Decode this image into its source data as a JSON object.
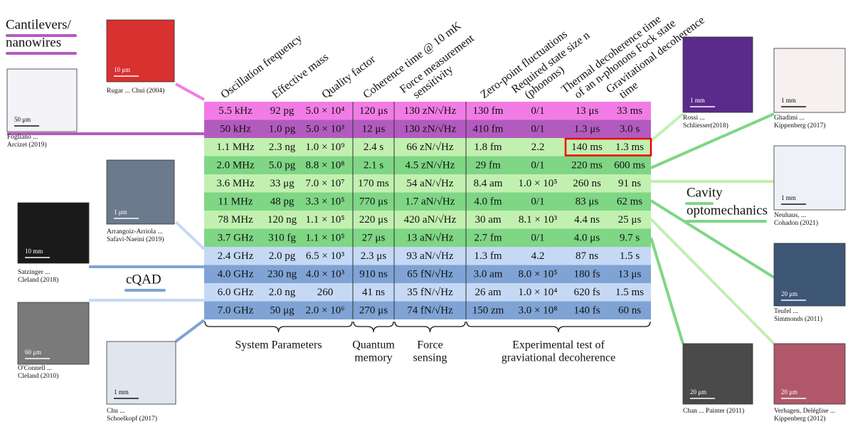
{
  "categories": [
    {
      "label": [
        "Cantilevers/",
        "nanowires"
      ]
    },
    {
      "label": [
        "cQAD"
      ]
    },
    {
      "label": [
        "Cavity",
        "optomechanics"
      ]
    }
  ],
  "table": {
    "headers": [
      [
        "Oscillation frequency"
      ],
      [
        "Effective mass"
      ],
      [
        "Quality factor"
      ],
      [
        "Coherence time @ 10 mK"
      ],
      [
        "Force measurement",
        "sensitivity"
      ],
      [
        "Zero-point fluctuations"
      ],
      [
        "Required state size n",
        "(phonons)"
      ],
      [
        "Thermal decoherence time",
        "of an n-phonons Fock state"
      ],
      [
        "Gravitational decoherence",
        "time"
      ]
    ],
    "rows": [
      [
        "5.5 kHz",
        "92 pg",
        "5.0 × 10⁴",
        "120 μs",
        "130 zN/√Hz",
        "130 fm",
        "0/1",
        "13 μs",
        "33 ms"
      ],
      [
        "50 kHz",
        "1.0 pg",
        "5.0 × 10³",
        "12 μs",
        "130 zN/√Hz",
        "410 fm",
        "0/1",
        "1.3 μs",
        "3.0 s"
      ],
      [
        "1.1 MHz",
        "2.3 ng",
        "1.0 × 10⁹",
        "2.4 s",
        "66 zN/√Hz",
        "1.8 fm",
        "2.2",
        "140 ms",
        "1.3 ms"
      ],
      [
        "2.0 MHz",
        "5.0 pg",
        "8.8 × 10⁸",
        "2.1 s",
        "4.5 zN/√Hz",
        "29 fm",
        "0/1",
        "220 ms",
        "600 ms"
      ],
      [
        "3.6 MHz",
        "33 μg",
        "7.0 × 10⁷",
        "170 ms",
        "54 aN/√Hz",
        "8.4 am",
        "1.0 × 10⁵",
        "260 ns",
        "91 ns"
      ],
      [
        "11 MHz",
        "48 pg",
        "3.3 × 10⁵",
        "770 μs",
        "1.7 aN/√Hz",
        "4.0 fm",
        "0/1",
        "83 μs",
        "62 ms"
      ],
      [
        "78 MHz",
        "120 ng",
        "1.1 × 10⁵",
        "220 μs",
        "420 aN/√Hz",
        "30 am",
        "8.1 × 10³",
        "4.4 ns",
        "25 μs"
      ],
      [
        "3.7 GHz",
        "310 fg",
        "1.1 × 10⁵",
        "27 μs",
        "13 aN/√Hz",
        "2.7 fm",
        "0/1",
        "4.0 μs",
        "9.7 s"
      ],
      [
        "2.4 GHz",
        "2.0 pg",
        "6.5 × 10³",
        "2.3 μs",
        "93 aN/√Hz",
        "1.3 fm",
        "4.2",
        "87 ns",
        "1.5 s"
      ],
      [
        "4.0 GHz",
        "230 ng",
        "4.0 × 10³",
        "910 ns",
        "65 fN/√Hz",
        "3.0 am",
        "8.0 × 10⁵",
        "180 fs",
        "13 μs"
      ],
      [
        "6.0 GHz",
        "2.0 ng",
        "260",
        "41 ns",
        "35 fN/√Hz",
        "26 am",
        "1.0 × 10⁴",
        "620 fs",
        "1.5 ms"
      ],
      [
        "7.0 GHz",
        "50 μg",
        "2.0 × 10⁶",
        "270 μs",
        "74 fN/√Hz",
        "150 zm",
        "3.0 × 10⁸",
        "140 fs",
        "60 ns"
      ]
    ],
    "groups": [
      [
        "System Parameters"
      ],
      [
        "Quantum",
        "memory"
      ],
      [
        "Force",
        "sensing"
      ],
      [
        "Experimental test of",
        "graviational decoherence"
      ]
    ]
  },
  "images": [
    {
      "scale": "10 μm",
      "caption": [
        "Rugar ... Chui (2004)"
      ]
    },
    {
      "scale": "50 μm",
      "caption": [
        "Fogliano ...",
        "Arcizet (2019)"
      ]
    },
    {
      "scale": "1 μm",
      "caption": [
        "Arrangoiz-Arriola ...",
        "Safavi-Naeini (2019)"
      ]
    },
    {
      "scale": "10 mm",
      "caption": [
        "Satzinger ...",
        "Cleland (2018)"
      ]
    },
    {
      "scale": "60 μm",
      "caption": [
        "O'Connell ...",
        "Cleland (2010)"
      ]
    },
    {
      "scale": "1 mm",
      "caption": [
        "Chu ...",
        "Schoelkopf (2017)"
      ]
    },
    {
      "scale": "1 mm",
      "caption": [
        "Rossi ...",
        "Schliesser(2018)"
      ]
    },
    {
      "scale": "1 mm",
      "caption": [
        "Ghadimi ...",
        "Kippenberg (2017)"
      ]
    },
    {
      "scale": "1 mm",
      "caption": [
        "Neuhaus, ...",
        "Cohadon (2021)"
      ]
    },
    {
      "scale": "20 μm",
      "caption": [
        "Teufel ...",
        "Simmonds (2011)"
      ]
    },
    {
      "scale": "20 μm",
      "caption": [
        "Chan ... Painter (2011)"
      ]
    },
    {
      "scale": "20 μm",
      "caption": [
        "Verhagen, Deléglise ...",
        "Kippenberg (2012)"
      ]
    }
  ]
}
